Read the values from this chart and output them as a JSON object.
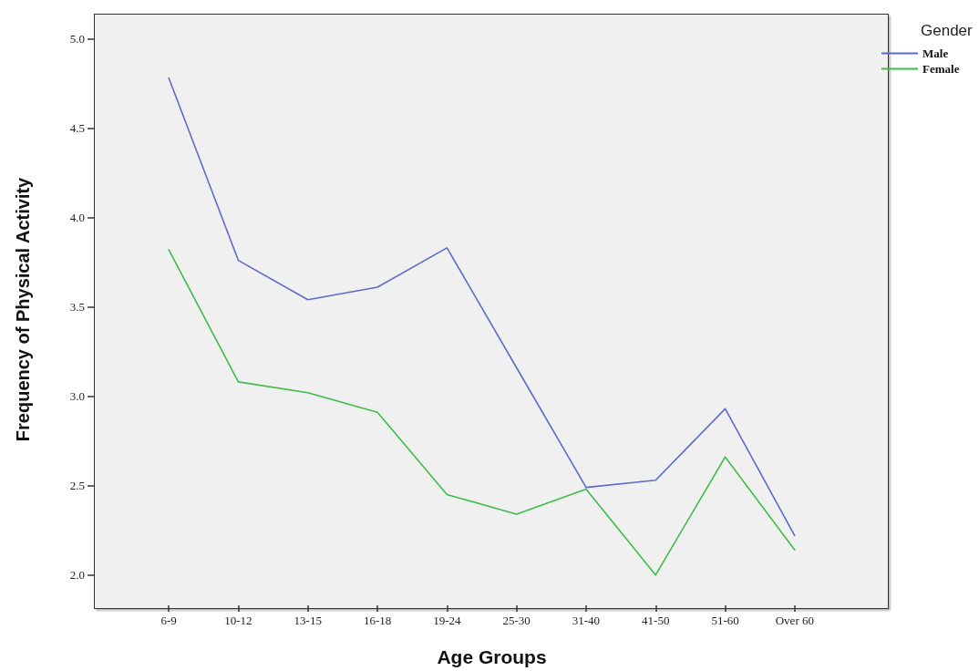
{
  "chart_data": {
    "type": "line",
    "xlabel": "Age Groups",
    "ylabel": "Frequency of Physical Activity",
    "legend_title": "Gender",
    "categories": [
      "6-9",
      "10-12",
      "13-15",
      "16-18",
      "19-24",
      "25-30",
      "31-40",
      "41-50",
      "51-60",
      "Over 60"
    ],
    "series": [
      {
        "name": "Male",
        "color": "#5b6dc8",
        "values": [
          4.78,
          3.76,
          3.54,
          3.61,
          3.83,
          3.16,
          2.49,
          2.53,
          2.93,
          2.22
        ]
      },
      {
        "name": "Female",
        "color": "#3ebd4a",
        "values": [
          3.82,
          3.08,
          3.02,
          2.91,
          2.45,
          2.34,
          2.48,
          2.0,
          2.66,
          2.14
        ]
      }
    ],
    "ylim": [
      1.83,
      5.14
    ],
    "yticks": [
      {
        "value": 2,
        "label": "2.0"
      },
      {
        "value": 2.5,
        "label": "2.5"
      },
      {
        "value": 3,
        "label": "3.0"
      },
      {
        "value": 3.5,
        "label": "3.5"
      },
      {
        "value": 4,
        "label": "4.0"
      },
      {
        "value": 4.5,
        "label": "4.5"
      },
      {
        "value": 5,
        "label": "5.0"
      }
    ],
    "grid": false,
    "legend": "top right",
    "marker": "none",
    "line_style": "solid"
  }
}
